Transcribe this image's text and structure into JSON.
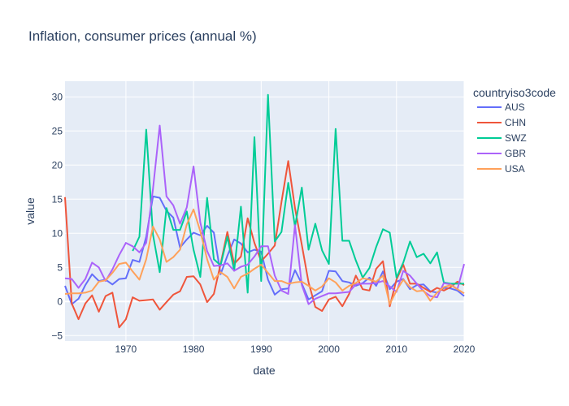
{
  "chart_data": {
    "type": "line",
    "title": "Inflation, consumer prices (annual %)",
    "xlabel": "date",
    "ylabel": "value",
    "xlim": [
      1961,
      2020
    ],
    "ylim": [
      -5.8,
      32.3
    ],
    "xticks": [
      1970,
      1980,
      1990,
      2000,
      2010,
      2020
    ],
    "yticks": [
      -5,
      0,
      5,
      10,
      15,
      20,
      25,
      30
    ],
    "grid": true,
    "legend": {
      "title": "countryiso3code",
      "placement": "right"
    },
    "series": [
      {
        "name": "AUS",
        "color": "#636efa",
        "x": [
          1961,
          1962,
          1963,
          1964,
          1965,
          1966,
          1967,
          1968,
          1969,
          1970,
          1971,
          1972,
          1973,
          1974,
          1975,
          1976,
          1977,
          1978,
          1979,
          1980,
          1981,
          1982,
          1983,
          1984,
          1985,
          1986,
          1987,
          1988,
          1989,
          1990,
          1991,
          1992,
          1993,
          1994,
          1995,
          1996,
          1997,
          1998,
          1999,
          2000,
          2001,
          2002,
          2003,
          2004,
          2005,
          2006,
          2007,
          2008,
          2009,
          2010,
          2011,
          2012,
          2013,
          2014,
          2015,
          2016,
          2017,
          2018,
          2019,
          2020
        ],
        "y": [
          2.3,
          -0.4,
          0.4,
          2.4,
          4.0,
          3.0,
          3.2,
          2.5,
          3.3,
          3.4,
          6.1,
          5.8,
          9.5,
          15.4,
          15.2,
          13.3,
          12.3,
          7.9,
          9.1,
          10.1,
          9.7,
          11.1,
          10.1,
          4.0,
          6.7,
          9.1,
          8.5,
          7.2,
          7.6,
          7.3,
          3.2,
          1.0,
          1.8,
          1.9,
          4.6,
          2.6,
          0.3,
          0.9,
          1.5,
          4.5,
          4.4,
          3.0,
          2.8,
          2.3,
          2.7,
          3.5,
          2.3,
          4.4,
          1.8,
          2.9,
          3.3,
          1.8,
          2.4,
          2.5,
          1.5,
          1.3,
          2.0,
          1.9,
          1.6,
          0.8
        ]
      },
      {
        "name": "CHN",
        "color": "#ef553b",
        "x": [
          1961,
          1962,
          1963,
          1964,
          1965,
          1966,
          1967,
          1968,
          1969,
          1970,
          1971,
          1972,
          1973,
          1974,
          1975,
          1976,
          1977,
          1978,
          1979,
          1980,
          1981,
          1982,
          1983,
          1984,
          1985,
          1986,
          1987,
          1988,
          1989,
          1990,
          1991,
          1992,
          1993,
          1994,
          1995,
          1996,
          1997,
          1998,
          1999,
          2000,
          2001,
          2002,
          2003,
          2004,
          2005,
          2006,
          2007,
          2008,
          2009,
          2010,
          2011,
          2012,
          2013,
          2014,
          2015,
          2016,
          2017,
          2018,
          2019,
          2020
        ],
        "y": [
          15.3,
          -0.3,
          -2.6,
          -0.3,
          0.9,
          -1.5,
          0.8,
          1.3,
          -3.8,
          -2.6,
          0.6,
          0.1,
          0.2,
          0.3,
          -1.2,
          -0.1,
          1.0,
          1.5,
          3.6,
          3.7,
          2.5,
          -0.1,
          1.1,
          5.5,
          10.2,
          5.5,
          6.6,
          12.2,
          8.6,
          5.9,
          7.0,
          8.2,
          14.6,
          20.6,
          13.7,
          8.3,
          2.8,
          -0.8,
          -1.4,
          0.3,
          0.7,
          -0.7,
          1.1,
          3.8,
          1.8,
          1.6,
          4.8,
          5.9,
          -0.7,
          3.2,
          5.4,
          2.6,
          2.6,
          2.0,
          1.4,
          2.0,
          1.6,
          2.1,
          2.9,
          2.4
        ]
      },
      {
        "name": "SWZ",
        "color": "#00cc96",
        "x": [
          1971,
          1972,
          1973,
          1974,
          1975,
          1976,
          1977,
          1978,
          1979,
          1980,
          1981,
          1982,
          1983,
          1984,
          1985,
          1986,
          1987,
          1988,
          1989,
          1990,
          1991,
          1992,
          1993,
          1994,
          1995,
          1996,
          1997,
          1998,
          1999,
          2000,
          2001,
          2002,
          2003,
          2004,
          2005,
          2006,
          2007,
          2008,
          2009,
          2010,
          2011,
          2012,
          2013,
          2014,
          2015,
          2016,
          2017,
          2018,
          2019,
          2020
        ],
        "y": [
          7.4,
          9.5,
          25.2,
          9.8,
          4.3,
          13.7,
          10.5,
          10.5,
          13.2,
          7.6,
          3.6,
          15.2,
          6.2,
          5.3,
          9.5,
          4.5,
          13.9,
          1.3,
          24.1,
          3.0,
          30.3,
          8.8,
          10.2,
          17.4,
          11.0,
          16.7,
          7.6,
          11.4,
          7.5,
          5.5,
          25.3,
          8.9,
          8.9,
          6.0,
          3.5,
          4.9,
          8.0,
          10.6,
          10.1,
          3.5,
          5.7,
          8.8,
          6.5,
          7.0,
          5.6,
          7.2,
          2.8,
          2.6,
          2.6,
          2.6
        ]
      },
      {
        "name": "GBR",
        "color": "#ab63fa",
        "x": [
          1961,
          1962,
          1963,
          1964,
          1965,
          1966,
          1967,
          1968,
          1969,
          1970,
          1971,
          1972,
          1973,
          1974,
          1975,
          1976,
          1977,
          1978,
          1979,
          1980,
          1981,
          1982,
          1983,
          1984,
          1985,
          1986,
          1987,
          1988,
          1989,
          1990,
          1991,
          1992,
          1993,
          1994,
          1995,
          1996,
          1997,
          1998,
          1999,
          2000,
          2001,
          2002,
          2003,
          2004,
          2005,
          2006,
          2007,
          2008,
          2009,
          2010,
          2011,
          2012,
          2013,
          2014,
          2015,
          2016,
          2017,
          2018,
          2019,
          2020
        ],
        "y": [
          3.4,
          3.3,
          2.0,
          3.3,
          5.7,
          5.0,
          3.0,
          4.7,
          6.8,
          8.6,
          8.1,
          7.2,
          8.6,
          16.5,
          25.8,
          15.4,
          14.1,
          11.4,
          13.8,
          19.8,
          11.6,
          7.4,
          5.2,
          5.3,
          5.6,
          4.5,
          5.1,
          5.4,
          6.6,
          8.1,
          8.1,
          3.8,
          1.6,
          1.1,
          11.2,
          2.4,
          -0.4,
          0.4,
          0.8,
          1.2,
          1.2,
          1.3,
          1.4,
          2.5,
          2.6,
          2.6,
          2.7,
          3.0,
          2.2,
          1.4,
          4.5,
          3.8,
          2.6,
          1.5,
          0.8,
          0.6,
          2.7,
          2.5,
          1.8,
          5.5
        ]
      },
      {
        "name": "USA",
        "color": "#ffa15a",
        "x": [
          1961,
          1962,
          1963,
          1964,
          1965,
          1966,
          1967,
          1968,
          1969,
          1970,
          1971,
          1972,
          1973,
          1974,
          1975,
          1976,
          1977,
          1978,
          1979,
          1980,
          1981,
          1982,
          1983,
          1984,
          1985,
          1986,
          1987,
          1988,
          1989,
          1990,
          1991,
          1992,
          1993,
          1994,
          1995,
          1996,
          1997,
          1998,
          1999,
          2000,
          2001,
          2002,
          2003,
          2004,
          2005,
          2006,
          2007,
          2008,
          2009,
          2010,
          2011,
          2012,
          2013,
          2014,
          2015,
          2016,
          2017,
          2018,
          2019,
          2020
        ],
        "y": [
          1.1,
          1.2,
          1.2,
          1.3,
          1.6,
          2.9,
          3.1,
          4.2,
          5.5,
          5.7,
          4.4,
          3.2,
          6.2,
          11.0,
          9.1,
          5.8,
          6.5,
          7.6,
          11.3,
          13.5,
          10.3,
          6.2,
          3.2,
          4.3,
          3.6,
          1.9,
          3.6,
          4.1,
          4.8,
          5.4,
          4.2,
          3.0,
          3.0,
          2.6,
          2.8,
          2.9,
          2.3,
          1.6,
          2.2,
          3.4,
          2.8,
          1.6,
          2.3,
          2.7,
          3.4,
          3.2,
          2.9,
          3.8,
          -0.4,
          1.6,
          3.2,
          2.1,
          1.5,
          1.6,
          0.1,
          1.3,
          2.1,
          2.4,
          1.8,
          1.2
        ]
      }
    ]
  }
}
